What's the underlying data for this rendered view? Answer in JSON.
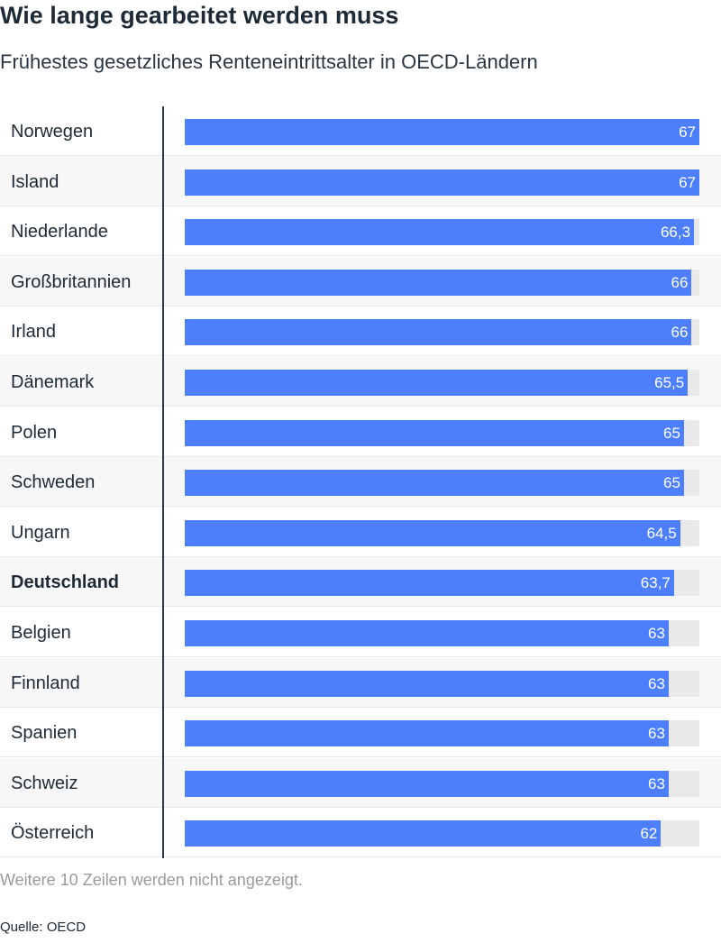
{
  "header": {
    "title": "Wie lange gearbeitet werden muss",
    "subtitle": "Frühestes gesetzliches Renteneintrittsalter in OECD-Ländern"
  },
  "footer": {
    "note": "Weitere 10 Zeilen werden nicht angezeigt.",
    "source": "Quelle: OECD"
  },
  "colors": {
    "bar": "#4d7ffc",
    "track": "#e9e9e9"
  },
  "chart_data": {
    "type": "bar",
    "orientation": "horizontal",
    "title": "Wie lange gearbeitet werden muss",
    "subtitle": "Frühestes gesetzliches Renteneintrittsalter in OECD-Ländern",
    "categories": [
      "Norwegen",
      "Island",
      "Niederlande",
      "Großbritannien",
      "Irland",
      "Dänemark",
      "Polen",
      "Schweden",
      "Ungarn",
      "Deutschland",
      "Belgien",
      "Finnland",
      "Spanien",
      "Schweiz",
      "Österreich"
    ],
    "values": [
      67,
      67,
      66.3,
      66,
      66,
      65.5,
      65,
      65,
      64.5,
      63.7,
      63,
      63,
      63,
      63,
      62
    ],
    "value_labels": [
      "67",
      "67",
      "66,3",
      "66",
      "66",
      "65,5",
      "65",
      "65",
      "64,5",
      "63,7",
      "63",
      "63",
      "63",
      "63",
      "62"
    ],
    "highlighted": [
      "Deutschland"
    ],
    "xlim": [
      0,
      67
    ],
    "grid": false
  }
}
